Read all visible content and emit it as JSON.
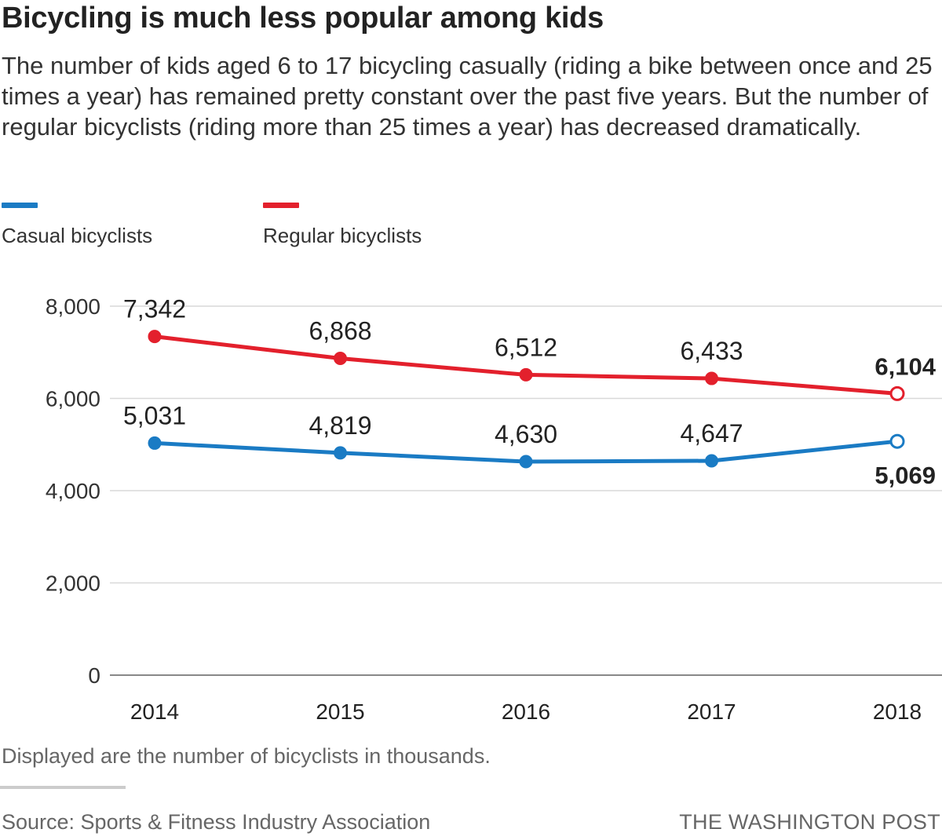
{
  "header": {
    "title": "Bicycling is much less popular among kids",
    "subtitle": "The number of kids aged 6 to 17 bicycling casually (riding a bike between once and 25 times a year) has remained pretty constant over the past five years. But the number of regular bicyclists (riding more than 25 times a year) has decreased dramatically."
  },
  "colors": {
    "casual": "#1a7bc4",
    "regular": "#e3202c",
    "grid": "#d9d9d9",
    "axis": "#888888",
    "text": "#333333"
  },
  "chart_data": {
    "type": "line",
    "title": "Bicycling is much less popular among kids",
    "xlabel": "",
    "ylabel": "",
    "x": [
      "2014",
      "2015",
      "2016",
      "2017",
      "2018"
    ],
    "ylim": [
      0,
      8000
    ],
    "yticks": [
      0,
      2000,
      4000,
      6000,
      8000
    ],
    "ytick_labels": [
      "0",
      "2,000",
      "4,000",
      "6,000",
      "8,000"
    ],
    "grid": true,
    "legend_position": "top-left",
    "series": [
      {
        "name": "Casual bicyclists",
        "key": "casual",
        "values": [
          5031,
          4819,
          4630,
          4647,
          5069
        ],
        "labels": [
          "5,031",
          "4,819",
          "4,630",
          "4,647",
          "5,069"
        ],
        "label_position": "above",
        "last_label_position": "below"
      },
      {
        "name": "Regular bicyclists",
        "key": "regular",
        "values": [
          7342,
          6868,
          6512,
          6433,
          6104
        ],
        "labels": [
          "7,342",
          "6,868",
          "6,512",
          "6,433",
          "6,104"
        ],
        "label_position": "above",
        "last_label_position": "above"
      }
    ]
  },
  "legend": {
    "casual_label": "Casual bicyclists",
    "regular_label": "Regular bicyclists"
  },
  "footer": {
    "note": "Displayed are the number of bicyclists in thousands.",
    "source": "Source: Sports & Fitness Industry Association",
    "credit": "THE WASHINGTON POST"
  }
}
